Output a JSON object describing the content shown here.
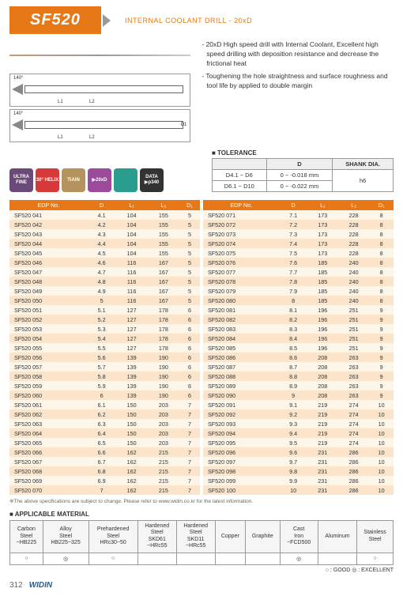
{
  "header": {
    "title": "SF520",
    "subtitle": "INTERNAL COOLANT DRILL - 20xD"
  },
  "desc": [
    "- 20xD High speed drill with Internal Coolant, Excellent high speed drilling with deposition resistance and decrease the frictional heat",
    "- Toughening the hole straightness and surface roughness and tool life by applied to double margin"
  ],
  "badges": [
    "ULTRA FINE",
    "30° HELIX",
    "TiAlN",
    "▶20xD",
    "",
    "DATA ▶p340"
  ],
  "tolerance": {
    "title": "■ TOLERANCE",
    "headers": [
      "",
      "D",
      "SHANK DIA."
    ],
    "rows": [
      [
        "D4.1 ~ D6",
        "0 ~ -0.018 mm",
        "h6"
      ],
      [
        "D6.1 ~ D10",
        "0 ~ -0.022 mm",
        ""
      ]
    ]
  },
  "tableHeaders": [
    "EDP No.",
    "D",
    "L₁",
    "L₂",
    "D₁"
  ],
  "leftRows": [
    [
      "SF520 041",
      "4.1",
      "104",
      "155",
      "5"
    ],
    [
      "SF520 042",
      "4.2",
      "104",
      "155",
      "5"
    ],
    [
      "SF520 043",
      "4.3",
      "104",
      "155",
      "5"
    ],
    [
      "SF520 044",
      "4.4",
      "104",
      "155",
      "5"
    ],
    [
      "SF520 045",
      "4.5",
      "104",
      "155",
      "5"
    ],
    [
      "SF520 046",
      "4.6",
      "116",
      "167",
      "5"
    ],
    [
      "SF520 047",
      "4.7",
      "116",
      "167",
      "5"
    ],
    [
      "SF520 048",
      "4.8",
      "116",
      "167",
      "5"
    ],
    [
      "SF520 049",
      "4.9",
      "116",
      "167",
      "5"
    ],
    [
      "SF520 050",
      "5",
      "116",
      "167",
      "5"
    ],
    [
      "SF520 051",
      "5.1",
      "127",
      "178",
      "6"
    ],
    [
      "SF520 052",
      "5.2",
      "127",
      "178",
      "6"
    ],
    [
      "SF520 053",
      "5.3",
      "127",
      "178",
      "6"
    ],
    [
      "SF520 054",
      "5.4",
      "127",
      "178",
      "6"
    ],
    [
      "SF520 055",
      "5.5",
      "127",
      "178",
      "6"
    ],
    [
      "SF520 056",
      "5.6",
      "139",
      "190",
      "6"
    ],
    [
      "SF520 057",
      "5.7",
      "139",
      "190",
      "6"
    ],
    [
      "SF520 058",
      "5.8",
      "139",
      "190",
      "6"
    ],
    [
      "SF520 059",
      "5.9",
      "139",
      "190",
      "6"
    ],
    [
      "SF520 060",
      "6",
      "139",
      "190",
      "6"
    ],
    [
      "SF520 061",
      "6.1",
      "150",
      "203",
      "7"
    ],
    [
      "SF520 062",
      "6.2",
      "150",
      "203",
      "7"
    ],
    [
      "SF520 063",
      "6.3",
      "150",
      "203",
      "7"
    ],
    [
      "SF520 064",
      "6.4",
      "150",
      "203",
      "7"
    ],
    [
      "SF520 065",
      "6.5",
      "150",
      "203",
      "7"
    ],
    [
      "SF520 066",
      "6.6",
      "162",
      "215",
      "7"
    ],
    [
      "SF520 067",
      "6.7",
      "162",
      "215",
      "7"
    ],
    [
      "SF520 068",
      "6.8",
      "162",
      "215",
      "7"
    ],
    [
      "SF520 069",
      "6.9",
      "162",
      "215",
      "7"
    ],
    [
      "SF520 070",
      "7",
      "162",
      "215",
      "7"
    ]
  ],
  "rightRows": [
    [
      "SF520 071",
      "7.1",
      "173",
      "228",
      "8"
    ],
    [
      "SF520 072",
      "7.2",
      "173",
      "228",
      "8"
    ],
    [
      "SF520 073",
      "7.3",
      "173",
      "228",
      "8"
    ],
    [
      "SF520 074",
      "7.4",
      "173",
      "228",
      "8"
    ],
    [
      "SF520 075",
      "7.5",
      "173",
      "228",
      "8"
    ],
    [
      "SF520 076",
      "7.6",
      "185",
      "240",
      "8"
    ],
    [
      "SF520 077",
      "7.7",
      "185",
      "240",
      "8"
    ],
    [
      "SF520 078",
      "7.8",
      "185",
      "240",
      "8"
    ],
    [
      "SF520 079",
      "7.9",
      "185",
      "240",
      "8"
    ],
    [
      "SF520 080",
      "8",
      "185",
      "240",
      "8"
    ],
    [
      "SF520 081",
      "8.1",
      "196",
      "251",
      "9"
    ],
    [
      "SF520 082",
      "8.2",
      "196",
      "251",
      "9"
    ],
    [
      "SF520 083",
      "8.3",
      "196",
      "251",
      "9"
    ],
    [
      "SF520 084",
      "8.4",
      "196",
      "251",
      "9"
    ],
    [
      "SF520 085",
      "8.5",
      "196",
      "251",
      "9"
    ],
    [
      "SF520 086",
      "8.6",
      "208",
      "263",
      "9"
    ],
    [
      "SF520 087",
      "8.7",
      "208",
      "263",
      "9"
    ],
    [
      "SF520 088",
      "8.8",
      "208",
      "263",
      "9"
    ],
    [
      "SF520 089",
      "8.9",
      "208",
      "263",
      "9"
    ],
    [
      "SF520 090",
      "9",
      "208",
      "263",
      "9"
    ],
    [
      "SF520 091",
      "9.1",
      "219",
      "274",
      "10"
    ],
    [
      "SF520 092",
      "9.2",
      "219",
      "274",
      "10"
    ],
    [
      "SF520 093",
      "9.3",
      "219",
      "274",
      "10"
    ],
    [
      "SF520 094",
      "9.4",
      "219",
      "274",
      "10"
    ],
    [
      "SF520 095",
      "9.5",
      "219",
      "274",
      "10"
    ],
    [
      "SF520 096",
      "9.6",
      "231",
      "286",
      "10"
    ],
    [
      "SF520 097",
      "9.7",
      "231",
      "286",
      "10"
    ],
    [
      "SF520 098",
      "9.8",
      "231",
      "286",
      "10"
    ],
    [
      "SF520 099",
      "9.9",
      "231",
      "286",
      "10"
    ],
    [
      "SF520 100",
      "10",
      "231",
      "286",
      "10"
    ]
  ],
  "note": "※The above specifications are subject to change. Please refer to www.widin.co.kr for the latest information.",
  "materials": {
    "title": "■ APPLICABLE MATERIAL",
    "headers": [
      "Carbon Steel ~HB225",
      "Alloy Steel HB225~325",
      "Prehardened Steel HRc30~50",
      "Hardened Steel SKD61 ~HRc55",
      "Hardened Steel SKD11 ~HRc55",
      "Copper",
      "Graphite",
      "Cast Iron ~FCD500",
      "Aluminum",
      "Stainless Steel"
    ],
    "values": [
      "○",
      "◎",
      "○",
      "",
      "",
      "",
      "",
      "◎",
      "",
      "○"
    ],
    "legend": "○ : GOOD  ◎ : EXCELLENT"
  },
  "footer": {
    "page": "312",
    "brand": "WIDIN"
  }
}
